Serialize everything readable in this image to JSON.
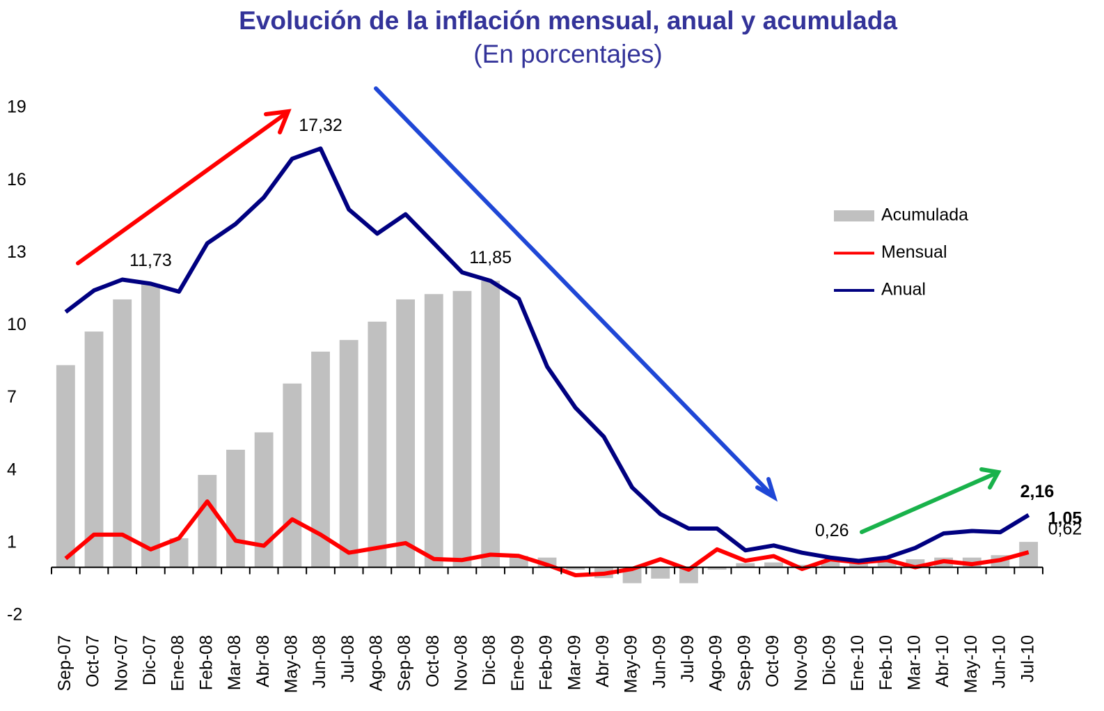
{
  "chart_data": {
    "type": "bar",
    "title": "Evolución de la inflación mensual, anual y acumulada",
    "subtitle": "(En porcentajes)",
    "categories": [
      "Sep-07",
      "Oct-07",
      "Nov-07",
      "Dic-07",
      "Ene-08",
      "Feb-08",
      "Mar-08",
      "Abr-08",
      "May-08",
      "Jun-08",
      "Jul-08",
      "Ago-08",
      "Sep-08",
      "Oct-08",
      "Nov-08",
      "Dic-08",
      "Ene-09",
      "Feb-09",
      "Mar-09",
      "Abr-09",
      "May-09",
      "Jun-09",
      "Jul-09",
      "Ago-09",
      "Sep-09",
      "Oct-09",
      "Nov-09",
      "Dic-09",
      "Ene-10",
      "Feb-10",
      "Mar-10",
      "Abr-10",
      "May-10",
      "Jun-10",
      "Jul-10"
    ],
    "series": [
      {
        "name": "Acumulada",
        "type": "bar",
        "color": "#c0c0c0",
        "values": [
          8.36,
          9.75,
          11.08,
          11.73,
          1.2,
          3.82,
          4.86,
          5.58,
          7.6,
          8.92,
          9.4,
          10.16,
          11.08,
          11.3,
          11.43,
          11.85,
          0.47,
          0.4,
          -0.1,
          -0.45,
          -0.66,
          -0.47,
          -0.66,
          -0.1,
          0.17,
          0.2,
          0.1,
          0.3,
          0.2,
          0.3,
          0.33,
          0.4,
          0.4,
          0.5,
          1.05
        ],
        "value_labels": [
          null,
          null,
          null,
          null,
          null,
          null,
          null,
          null,
          null,
          null,
          null,
          null,
          null,
          null,
          null,
          null,
          null,
          null,
          null,
          null,
          null,
          null,
          null,
          null,
          null,
          null,
          null,
          null,
          null,
          null,
          null,
          null,
          null,
          null,
          "1,05"
        ]
      },
      {
        "name": "Mensual",
        "type": "line",
        "color": "#ff0000",
        "values": [
          0.36,
          1.35,
          1.35,
          0.74,
          1.2,
          2.72,
          1.1,
          0.89,
          1.98,
          1.35,
          0.6,
          0.8,
          1.0,
          0.34,
          0.3,
          0.52,
          0.47,
          0.1,
          -0.33,
          -0.27,
          -0.07,
          0.33,
          -0.1,
          0.74,
          0.27,
          0.46,
          -0.07,
          0.33,
          0.2,
          0.3,
          0.0,
          0.25,
          0.13,
          0.3,
          0.62
        ],
        "value_labels": [
          null,
          null,
          null,
          null,
          null,
          null,
          null,
          null,
          null,
          null,
          null,
          null,
          null,
          null,
          null,
          null,
          null,
          null,
          null,
          null,
          null,
          null,
          null,
          null,
          null,
          null,
          null,
          null,
          null,
          null,
          null,
          null,
          null,
          null,
          "0,62"
        ]
      },
      {
        "name": "Anual",
        "type": "line",
        "color": "#000080",
        "values": [
          10.56,
          11.45,
          11.9,
          11.73,
          11.4,
          13.4,
          14.2,
          15.3,
          16.9,
          17.32,
          14.8,
          13.8,
          14.6,
          13.4,
          12.2,
          11.85,
          11.1,
          8.3,
          6.6,
          5.4,
          3.3,
          2.2,
          1.6,
          1.6,
          0.7,
          0.9,
          0.6,
          0.4,
          0.26,
          0.4,
          0.8,
          1.4,
          1.5,
          1.45,
          2.16
        ],
        "value_labels": [
          null,
          null,
          null,
          "11,73",
          null,
          null,
          null,
          null,
          null,
          "17,32",
          null,
          null,
          null,
          null,
          null,
          "11,85",
          null,
          null,
          null,
          null,
          null,
          null,
          null,
          null,
          null,
          null,
          null,
          null,
          "0,26",
          null,
          null,
          null,
          null,
          null,
          "2,16"
        ]
      }
    ],
    "ylim": [
      -2,
      19
    ],
    "yticks": [
      -2,
      1,
      4,
      7,
      10,
      13,
      16,
      19
    ],
    "grid": false,
    "legend": "right"
  }
}
